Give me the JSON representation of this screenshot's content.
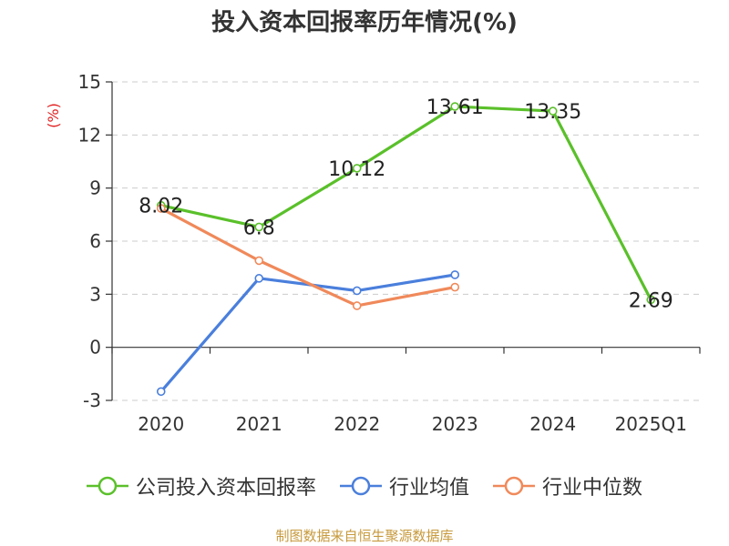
{
  "source": "制图数据来自恒生聚源数据库",
  "chart_data": {
    "type": "line",
    "title": "投入资本回报率历年情况(%)",
    "ylabel": "(%)",
    "xlabel": "",
    "categories": [
      "2020",
      "2021",
      "2022",
      "2023",
      "2024",
      "2025Q1"
    ],
    "ylim": [
      -3,
      15
    ],
    "yticks": [
      -3,
      0,
      3,
      6,
      9,
      12,
      15
    ],
    "grid": true,
    "legend_position": "bottom",
    "series": [
      {
        "name": "公司投入资本回报率",
        "color": "#5ac02a",
        "values": [
          8.02,
          6.8,
          10.12,
          13.61,
          13.35,
          2.69
        ],
        "labels": [
          "8.02",
          "6.8",
          "10.12",
          "13.61",
          "13.35",
          "2.69"
        ]
      },
      {
        "name": "行业均值",
        "color": "#4a7fdc",
        "values": [
          -2.5,
          3.9,
          3.2,
          4.1,
          null,
          null
        ]
      },
      {
        "name": "行业中位数",
        "color": "#f0895a",
        "values": [
          7.85,
          4.9,
          2.35,
          3.4,
          null,
          null
        ]
      }
    ]
  }
}
